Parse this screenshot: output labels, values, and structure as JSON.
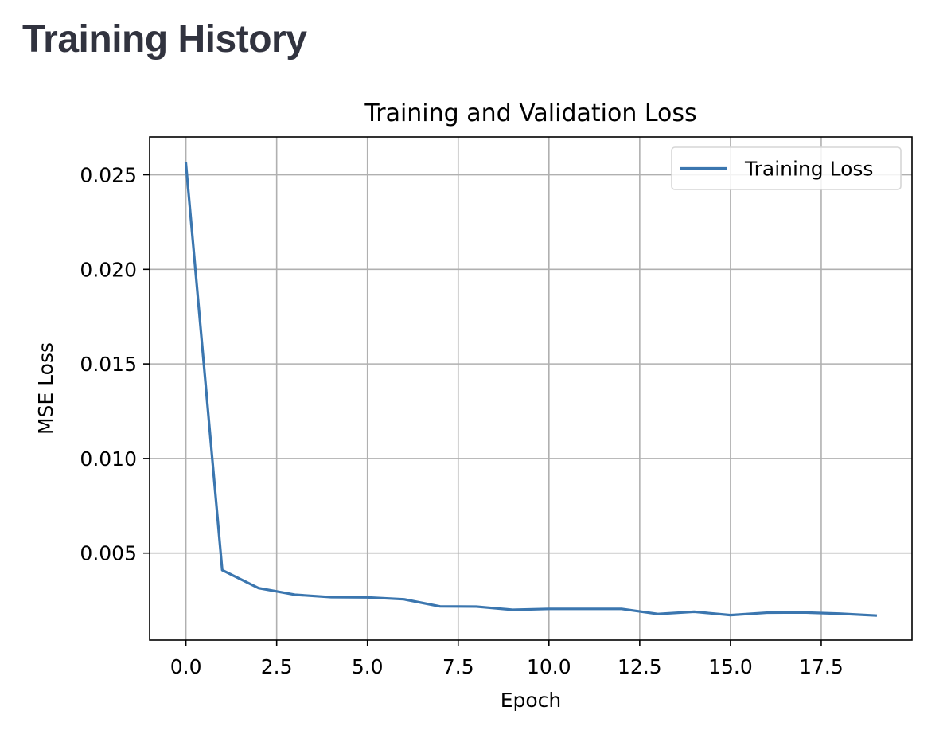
{
  "page": {
    "heading": "Training History"
  },
  "colors": {
    "series": "#3b76af",
    "grid": "#b0b0b0",
    "heading": "#31333f"
  },
  "chart_data": {
    "type": "line",
    "title": "Training and Validation Loss",
    "xlabel": "Epoch",
    "ylabel": "MSE Loss",
    "xlim": [
      -1,
      20
    ],
    "ylim": [
      0.0004,
      0.027
    ],
    "xticks": [
      0,
      2.5,
      5,
      7.5,
      10,
      12.5,
      15,
      17.5
    ],
    "xtick_labels": [
      "0.0",
      "2.5",
      "5.0",
      "7.5",
      "10.0",
      "12.5",
      "15.0",
      "17.5"
    ],
    "yticks": [
      0.005,
      0.01,
      0.015,
      0.02,
      0.025
    ],
    "ytick_labels": [
      "0.005",
      "0.010",
      "0.015",
      "0.020",
      "0.025"
    ],
    "grid": true,
    "legend_position": "top-right",
    "series": [
      {
        "name": "Training Loss",
        "x": [
          0,
          1,
          2,
          3,
          4,
          5,
          6,
          7,
          8,
          9,
          10,
          11,
          12,
          13,
          14,
          15,
          16,
          17,
          18,
          19
        ],
        "values": [
          0.0256,
          0.0041,
          0.00315,
          0.0028,
          0.00267,
          0.00266,
          0.00256,
          0.00218,
          0.00217,
          0.002,
          0.00205,
          0.00205,
          0.00205,
          0.00178,
          0.0019,
          0.00172,
          0.00185,
          0.00186,
          0.0018,
          0.0017
        ]
      }
    ]
  }
}
